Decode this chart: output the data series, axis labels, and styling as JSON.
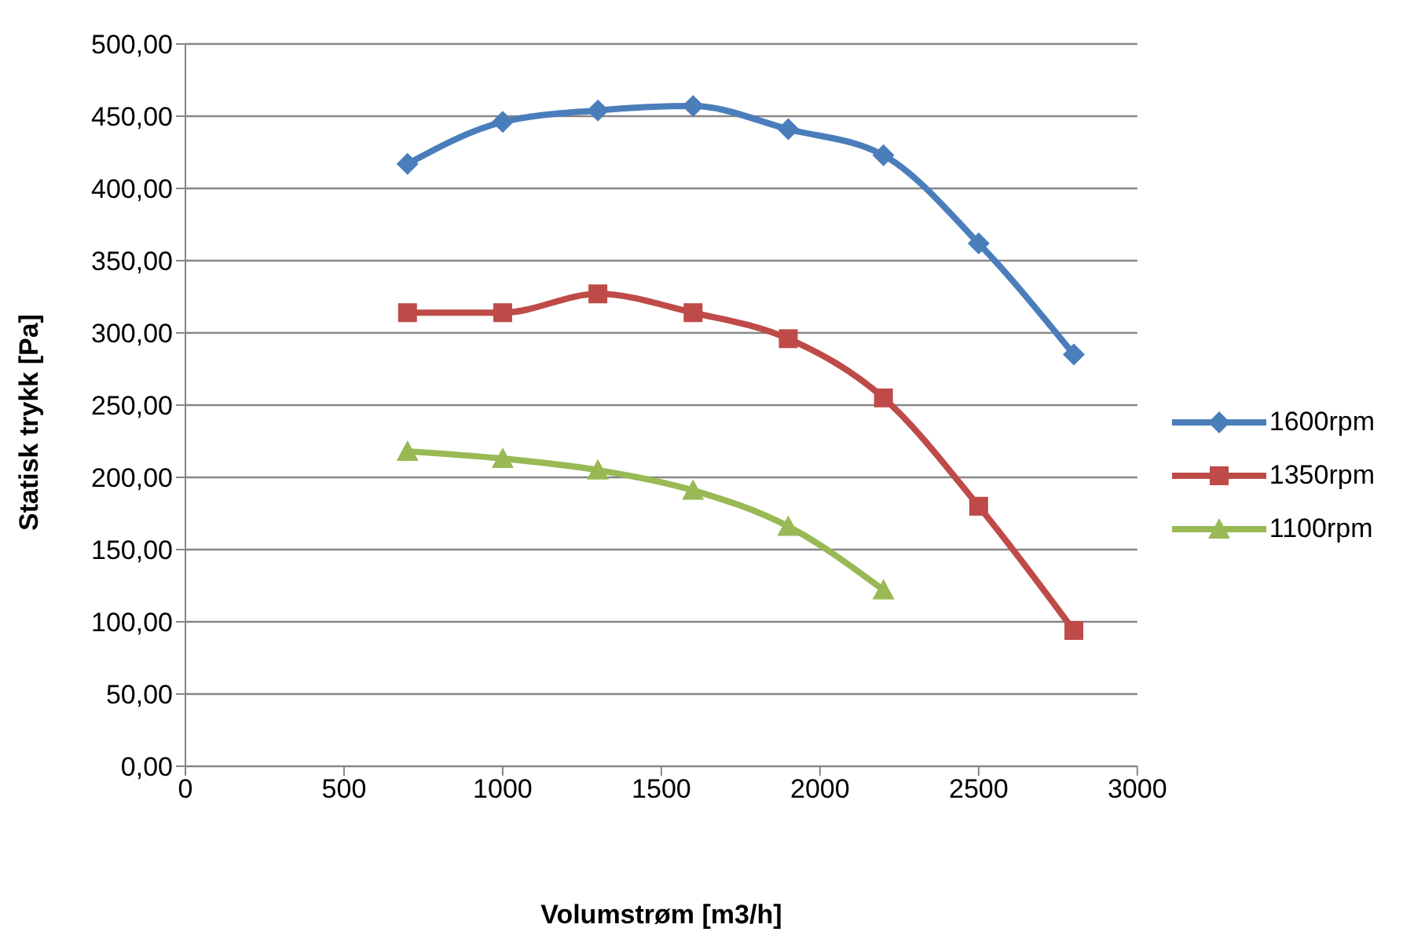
{
  "chart_data": {
    "type": "line",
    "xlabel": "Volumstrøm [m3/h]",
    "ylabel": "Statisk trykk [Pa]",
    "xlim": [
      0,
      3000
    ],
    "xticks": [
      0,
      500,
      1000,
      1500,
      2000,
      2500,
      3000
    ],
    "ylim": [
      0,
      500
    ],
    "yticks": [
      {
        "value": 0,
        "label": "0,00"
      },
      {
        "value": 50,
        "label": "50,00"
      },
      {
        "value": 100,
        "label": "100,00"
      },
      {
        "value": 150,
        "label": "150,00"
      },
      {
        "value": 200,
        "label": "200,00"
      },
      {
        "value": 250,
        "label": "250,00"
      },
      {
        "value": 300,
        "label": "300,00"
      },
      {
        "value": 350,
        "label": "350,00"
      },
      {
        "value": 400,
        "label": "400,00"
      },
      {
        "value": 450,
        "label": "450,00"
      },
      {
        "value": 500,
        "label": "500,00"
      }
    ],
    "grid": "y",
    "legend": "right",
    "series": [
      {
        "name": "1600rpm",
        "color": "#4a7ebb",
        "marker": "diamond",
        "x": [
          700,
          1000,
          1300,
          1600,
          1900,
          2200,
          2500,
          2800
        ],
        "values": [
          417,
          446,
          454,
          457,
          441,
          423,
          362,
          285
        ]
      },
      {
        "name": "1350rpm",
        "color": "#be4b48",
        "marker": "square",
        "x": [
          700,
          1000,
          1300,
          1600,
          1900,
          2200,
          2500,
          2800
        ],
        "values": [
          314,
          314,
          327,
          314,
          296,
          255,
          180,
          94
        ]
      },
      {
        "name": "1100rpm",
        "color": "#98b954",
        "marker": "triangle",
        "x": [
          700,
          1000,
          1300,
          1600,
          1900,
          2200
        ],
        "values": [
          218,
          213,
          205,
          191,
          166,
          122
        ]
      }
    ]
  }
}
